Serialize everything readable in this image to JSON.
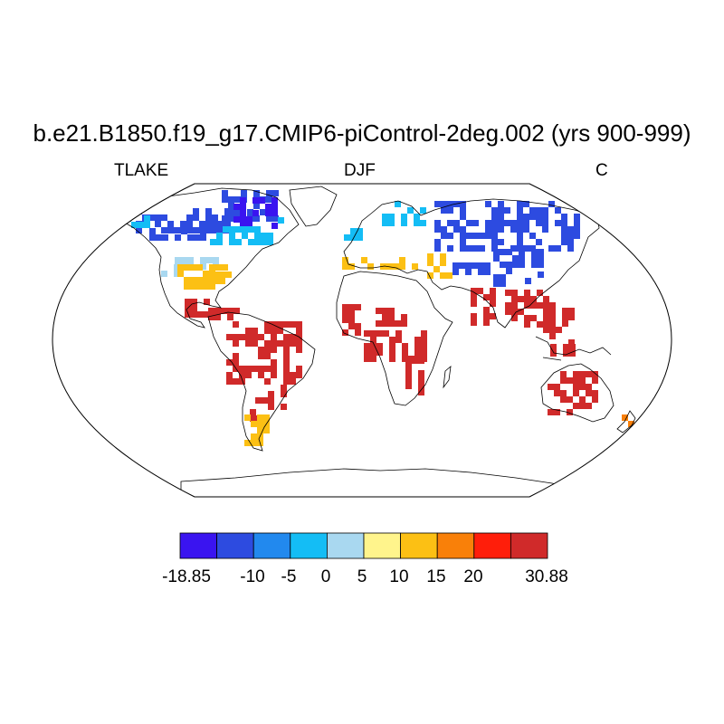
{
  "title": "b.e21.B1850.f19_g17.CMIP6-piControl-2deg.002 (yrs 900-999)",
  "variable": "TLAKE",
  "season": "DJF",
  "units": "C",
  "colorbar": {
    "colors": [
      "#3a14f0",
      "#2d4be0",
      "#2289ee",
      "#14bdf5",
      "#a9d8f0",
      "#fff48c",
      "#fcc014",
      "#f98009",
      "#ff1e0a",
      "#d02a2a"
    ],
    "tick_labels": [
      "-18.85",
      "-10",
      "-5",
      "0",
      "5",
      "10",
      "15",
      "20",
      "30.88"
    ]
  },
  "map_regions": [
    {
      "name": "northern-canada-alaska",
      "color": "#2d4be0"
    },
    {
      "name": "hudson-bay-region",
      "color": "#3a14f0"
    },
    {
      "name": "southern-canada",
      "color": "#14bdf5"
    },
    {
      "name": "us-midwest",
      "color": "#a9d8f0"
    },
    {
      "name": "us-east",
      "color": "#fcc014"
    },
    {
      "name": "scandinavia",
      "color": "#14bdf5"
    },
    {
      "name": "siberia",
      "color": "#2d4be0"
    },
    {
      "name": "mediterranean",
      "color": "#fcc014"
    },
    {
      "name": "tibet",
      "color": "#2d4be0"
    },
    {
      "name": "south-america",
      "color": "#d02a2a"
    },
    {
      "name": "patagonia",
      "color": "#fcc014"
    },
    {
      "name": "africa",
      "color": "#d02a2a"
    },
    {
      "name": "south-asia",
      "color": "#d02a2a"
    },
    {
      "name": "australia",
      "color": "#d02a2a"
    },
    {
      "name": "new-zealand",
      "color": "#f98009"
    }
  ]
}
